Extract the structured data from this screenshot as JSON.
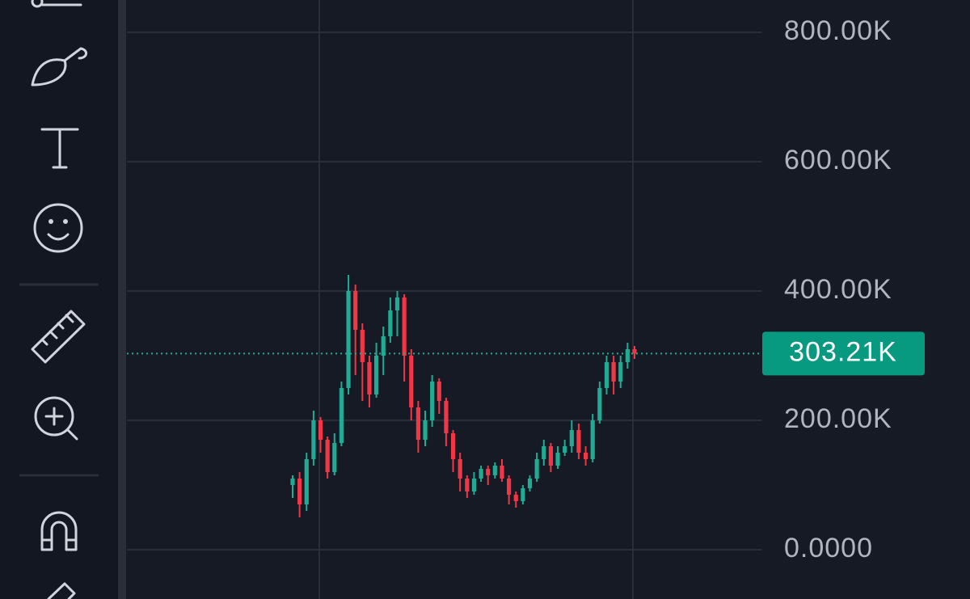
{
  "chart_data": {
    "type": "candlestick",
    "ylim": [
      -76250,
      850000
    ],
    "yticks": [
      {
        "value": 0,
        "label": "0.0000"
      },
      {
        "value": 200000,
        "label": "200.00K"
      },
      {
        "value": 400000,
        "label": "400.00K"
      },
      {
        "value": 600000,
        "label": "600.00K"
      },
      {
        "value": 800000,
        "label": "800.00K"
      }
    ],
    "grid": true,
    "up_color": "#22ab94",
    "down_color": "#f23645",
    "last_price": {
      "value": 303210,
      "label": "303.21K"
    },
    "open": [
      100000,
      110000,
      70000,
      140000,
      200000,
      170000,
      120000,
      165000,
      250000,
      400000,
      340000,
      290000,
      240000,
      300000,
      330000,
      370000,
      390000,
      300000,
      220000,
      170000,
      200000,
      260000,
      230000,
      180000,
      140000,
      110000,
      90000,
      110000,
      125000,
      115000,
      130000,
      110000,
      85000,
      75000,
      95000,
      110000,
      140000,
      160000,
      130000,
      150000,
      160000,
      185000,
      150000,
      140000,
      200000,
      250000,
      290000,
      260000,
      290000,
      310000
    ],
    "high": [
      115000,
      120000,
      150000,
      215000,
      205000,
      175000,
      180000,
      260000,
      425000,
      410000,
      350000,
      300000,
      320000,
      345000,
      390000,
      400000,
      395000,
      310000,
      230000,
      215000,
      270000,
      265000,
      235000,
      185000,
      150000,
      115000,
      120000,
      130000,
      130000,
      135000,
      140000,
      115000,
      90000,
      100000,
      115000,
      150000,
      170000,
      165000,
      160000,
      170000,
      200000,
      195000,
      160000,
      210000,
      260000,
      300000,
      300000,
      300000,
      320000,
      315000
    ],
    "low": [
      80000,
      50000,
      60000,
      130000,
      150000,
      110000,
      115000,
      160000,
      240000,
      270000,
      230000,
      220000,
      235000,
      270000,
      320000,
      330000,
      260000,
      200000,
      150000,
      160000,
      190000,
      210000,
      160000,
      120000,
      90000,
      80000,
      85000,
      105000,
      100000,
      110000,
      105000,
      70000,
      65000,
      70000,
      90000,
      105000,
      130000,
      120000,
      125000,
      145000,
      150000,
      140000,
      130000,
      135000,
      195000,
      240000,
      240000,
      250000,
      280000,
      295000
    ],
    "close": [
      110000,
      70000,
      140000,
      200000,
      170000,
      120000,
      165000,
      250000,
      400000,
      340000,
      290000,
      240000,
      300000,
      330000,
      370000,
      390000,
      300000,
      220000,
      170000,
      200000,
      260000,
      230000,
      180000,
      140000,
      110000,
      90000,
      110000,
      125000,
      115000,
      130000,
      110000,
      85000,
      75000,
      95000,
      110000,
      140000,
      160000,
      130000,
      150000,
      160000,
      185000,
      150000,
      140000,
      200000,
      250000,
      290000,
      260000,
      290000,
      310000,
      303210
    ]
  }
}
